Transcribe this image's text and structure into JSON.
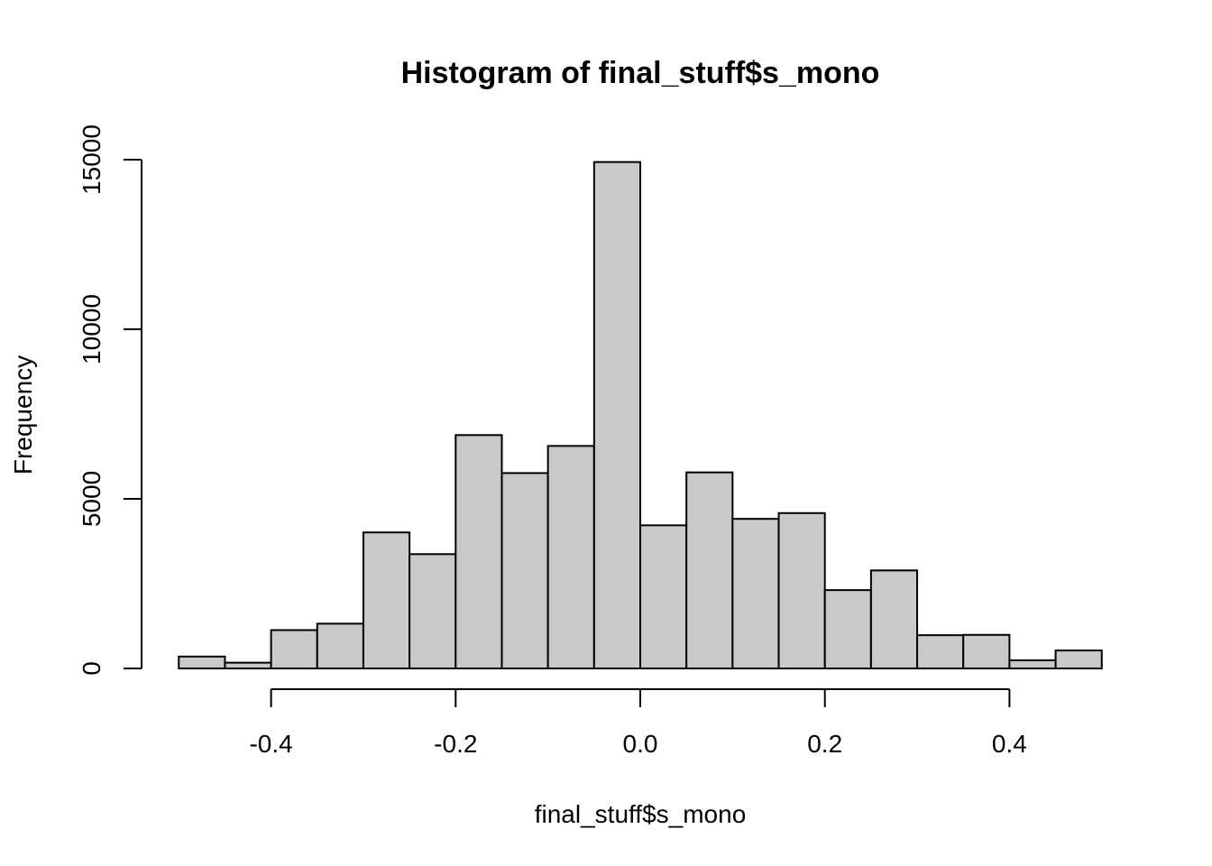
{
  "chart_data": {
    "type": "bar",
    "subtype": "histogram",
    "title": "Histogram of final_stuff$s_mono",
    "xlabel": "final_stuff$s_mono",
    "ylabel": "Frequency",
    "xlim": [
      -0.5,
      0.5
    ],
    "ylim": [
      0,
      15000
    ],
    "bin_width": 0.05,
    "bin_edges": [
      -0.5,
      -0.45,
      -0.4,
      -0.35,
      -0.3,
      -0.25,
      -0.2,
      -0.15,
      -0.1,
      -0.05,
      0.0,
      0.05,
      0.1,
      0.15,
      0.2,
      0.25,
      0.3,
      0.35,
      0.4,
      0.45,
      0.5
    ],
    "values": [
      350,
      170,
      1130,
      1320,
      4010,
      3370,
      6880,
      5760,
      6560,
      14930,
      4220,
      5780,
      4410,
      4580,
      2310,
      2890,
      980,
      990,
      240,
      530
    ],
    "x_ticks": [
      -0.4,
      -0.2,
      0.0,
      0.2,
      0.4
    ],
    "x_tick_labels": [
      "-0.4",
      "-0.2",
      "0.0",
      "0.2",
      "0.4"
    ],
    "y_ticks": [
      0,
      5000,
      10000,
      15000
    ],
    "y_tick_labels": [
      "0",
      "5000",
      "10000",
      "15000"
    ],
    "bar_fill": "#c9c9c9",
    "bar_stroke": "#000000",
    "grid": false,
    "legend": "none"
  }
}
